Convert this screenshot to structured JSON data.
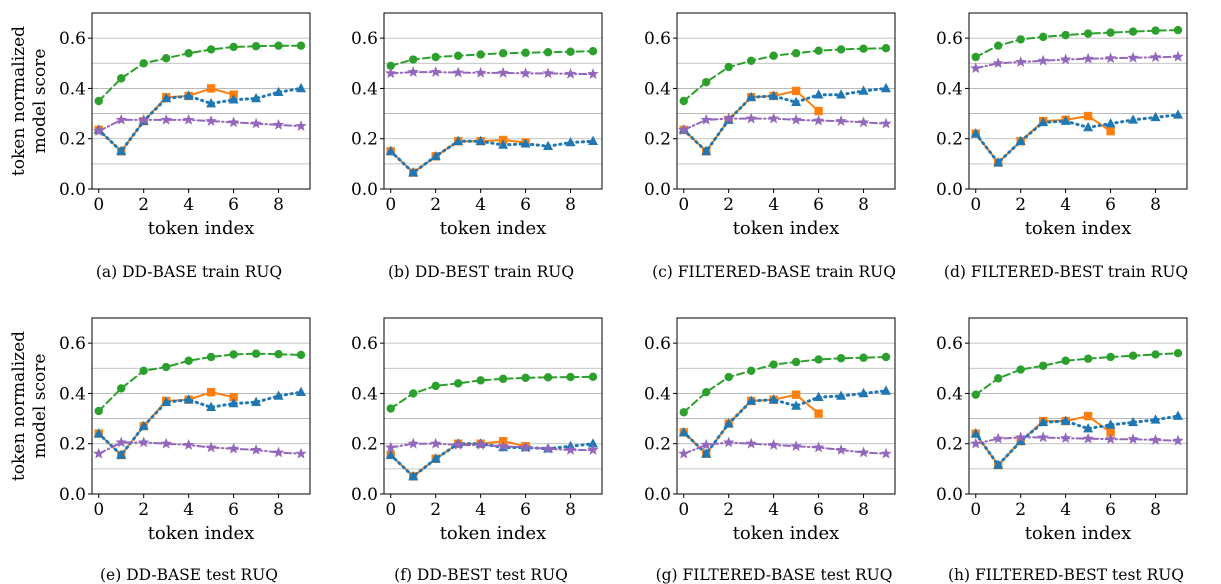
{
  "shared": {
    "ylabel": [
      "token normalized",
      "model score"
    ],
    "xlabel": "token index",
    "xticks": [
      0,
      2,
      4,
      6,
      8
    ],
    "yticks": [
      "0.0",
      "0.2",
      "0.4",
      "0.6"
    ],
    "colors": {
      "green": "#2ca02c",
      "orange": "#ff7f0e",
      "blue": "#1f77b4",
      "purple": "#9467bd"
    }
  },
  "chart_data": [
    {
      "type": "line",
      "caption": "(a) DD-BASE train RUQ",
      "xlim": [
        -0.3,
        9.4
      ],
      "ylim": [
        0,
        0.7
      ],
      "series": [
        {
          "color": "green",
          "marker": "circle",
          "dash": "dashed",
          "x": [
            0,
            1,
            2,
            3,
            4,
            5,
            6,
            7,
            8,
            9
          ],
          "values": [
            0.35,
            0.44,
            0.5,
            0.52,
            0.54,
            0.555,
            0.565,
            0.568,
            0.57,
            0.57
          ]
        },
        {
          "color": "orange",
          "marker": "square",
          "dash": "solid",
          "x": [
            0,
            1,
            2,
            3,
            4,
            5,
            6
          ],
          "values": [
            0.235,
            0.15,
            0.27,
            0.365,
            0.37,
            0.4,
            0.375
          ]
        },
        {
          "color": "blue",
          "marker": "triangle",
          "dash": "dotted",
          "x": [
            0,
            1,
            2,
            3,
            4,
            5,
            6,
            7,
            8,
            9
          ],
          "values": [
            0.235,
            0.15,
            0.27,
            0.36,
            0.37,
            0.34,
            0.355,
            0.36,
            0.385,
            0.4
          ]
        },
        {
          "color": "purple",
          "marker": "star",
          "dash": "dashdot",
          "x": [
            0,
            1,
            2,
            3,
            4,
            5,
            6,
            7,
            8,
            9
          ],
          "values": [
            0.23,
            0.275,
            0.275,
            0.275,
            0.275,
            0.27,
            0.265,
            0.26,
            0.255,
            0.25
          ]
        }
      ]
    },
    {
      "type": "line",
      "caption": "(b) DD-BEST train RUQ",
      "xlim": [
        -0.3,
        9.4
      ],
      "ylim": [
        0,
        0.7
      ],
      "series": [
        {
          "color": "green",
          "marker": "circle",
          "dash": "dashed",
          "x": [
            0,
            1,
            2,
            3,
            4,
            5,
            6,
            7,
            8,
            9
          ],
          "values": [
            0.49,
            0.515,
            0.525,
            0.53,
            0.535,
            0.54,
            0.542,
            0.544,
            0.546,
            0.548
          ]
        },
        {
          "color": "orange",
          "marker": "square",
          "dash": "solid",
          "x": [
            0,
            1,
            2,
            3,
            4,
            5,
            6
          ],
          "values": [
            0.15,
            0.065,
            0.13,
            0.19,
            0.19,
            0.195,
            0.185
          ]
        },
        {
          "color": "blue",
          "marker": "triangle",
          "dash": "dotted",
          "x": [
            0,
            1,
            2,
            3,
            4,
            5,
            6,
            7,
            8,
            9
          ],
          "values": [
            0.15,
            0.065,
            0.13,
            0.19,
            0.19,
            0.175,
            0.18,
            0.17,
            0.185,
            0.19
          ]
        },
        {
          "color": "purple",
          "marker": "star",
          "dash": "dashdot",
          "x": [
            0,
            1,
            2,
            3,
            4,
            5,
            6,
            7,
            8,
            9
          ],
          "values": [
            0.46,
            0.465,
            0.465,
            0.463,
            0.462,
            0.462,
            0.46,
            0.46,
            0.458,
            0.457
          ]
        }
      ]
    },
    {
      "type": "line",
      "caption": "(c) FILTERED-BASE train RUQ",
      "xlim": [
        -0.3,
        9.4
      ],
      "ylim": [
        0,
        0.7
      ],
      "series": [
        {
          "color": "green",
          "marker": "circle",
          "dash": "dashed",
          "x": [
            0,
            1,
            2,
            3,
            4,
            5,
            6,
            7,
            8,
            9
          ],
          "values": [
            0.35,
            0.425,
            0.485,
            0.51,
            0.53,
            0.54,
            0.55,
            0.555,
            0.558,
            0.56
          ]
        },
        {
          "color": "orange",
          "marker": "square",
          "dash": "solid",
          "x": [
            0,
            1,
            2,
            3,
            4,
            5,
            6
          ],
          "values": [
            0.235,
            0.15,
            0.275,
            0.365,
            0.37,
            0.39,
            0.31
          ]
        },
        {
          "color": "blue",
          "marker": "triangle",
          "dash": "dotted",
          "x": [
            0,
            1,
            2,
            3,
            4,
            5,
            6,
            7,
            8,
            9
          ],
          "values": [
            0.235,
            0.15,
            0.275,
            0.365,
            0.37,
            0.345,
            0.375,
            0.375,
            0.39,
            0.4
          ]
        },
        {
          "color": "purple",
          "marker": "star",
          "dash": "dashdot",
          "x": [
            0,
            1,
            2,
            3,
            4,
            5,
            6,
            7,
            8,
            9
          ],
          "values": [
            0.235,
            0.275,
            0.28,
            0.28,
            0.28,
            0.275,
            0.272,
            0.27,
            0.265,
            0.26
          ]
        }
      ]
    },
    {
      "type": "line",
      "caption": "(d) FILTERED-BEST train RUQ",
      "xlim": [
        -0.3,
        9.4
      ],
      "ylim": [
        0,
        0.7
      ],
      "series": [
        {
          "color": "green",
          "marker": "circle",
          "dash": "dashed",
          "x": [
            0,
            1,
            2,
            3,
            4,
            5,
            6,
            7,
            8,
            9
          ],
          "values": [
            0.525,
            0.57,
            0.595,
            0.605,
            0.612,
            0.618,
            0.622,
            0.626,
            0.63,
            0.632
          ]
        },
        {
          "color": "orange",
          "marker": "square",
          "dash": "solid",
          "x": [
            0,
            1,
            2,
            3,
            4,
            5,
            6
          ],
          "values": [
            0.22,
            0.105,
            0.19,
            0.27,
            0.275,
            0.29,
            0.23
          ]
        },
        {
          "color": "blue",
          "marker": "triangle",
          "dash": "dotted",
          "x": [
            0,
            1,
            2,
            3,
            4,
            5,
            6,
            7,
            8,
            9
          ],
          "values": [
            0.22,
            0.105,
            0.19,
            0.265,
            0.27,
            0.245,
            0.26,
            0.275,
            0.285,
            0.295
          ]
        },
        {
          "color": "purple",
          "marker": "star",
          "dash": "dashdot",
          "x": [
            0,
            1,
            2,
            3,
            4,
            5,
            6,
            7,
            8,
            9
          ],
          "values": [
            0.48,
            0.5,
            0.505,
            0.51,
            0.515,
            0.518,
            0.52,
            0.522,
            0.524,
            0.526
          ]
        }
      ]
    },
    {
      "type": "line",
      "caption": "(e) DD-BASE test RUQ",
      "xlim": [
        -0.3,
        9.4
      ],
      "ylim": [
        0,
        0.7
      ],
      "series": [
        {
          "color": "green",
          "marker": "circle",
          "dash": "dashed",
          "x": [
            0,
            1,
            2,
            3,
            4,
            5,
            6,
            7,
            8,
            9
          ],
          "values": [
            0.33,
            0.42,
            0.49,
            0.505,
            0.53,
            0.545,
            0.555,
            0.558,
            0.556,
            0.553
          ]
        },
        {
          "color": "orange",
          "marker": "square",
          "dash": "solid",
          "x": [
            0,
            1,
            2,
            3,
            4,
            5,
            6
          ],
          "values": [
            0.24,
            0.155,
            0.27,
            0.37,
            0.375,
            0.405,
            0.385
          ]
        },
        {
          "color": "blue",
          "marker": "triangle",
          "dash": "dotted",
          "x": [
            0,
            1,
            2,
            3,
            4,
            5,
            6,
            7,
            8,
            9
          ],
          "values": [
            0.24,
            0.155,
            0.27,
            0.365,
            0.375,
            0.345,
            0.36,
            0.365,
            0.39,
            0.405
          ]
        },
        {
          "color": "purple",
          "marker": "star",
          "dash": "dashdot",
          "x": [
            0,
            1,
            2,
            3,
            4,
            5,
            6,
            7,
            8,
            9
          ],
          "values": [
            0.16,
            0.205,
            0.205,
            0.2,
            0.195,
            0.185,
            0.18,
            0.175,
            0.165,
            0.16
          ]
        }
      ]
    },
    {
      "type": "line",
      "caption": "(f) DD-BEST test RUQ",
      "xlim": [
        -0.3,
        9.4
      ],
      "ylim": [
        0,
        0.7
      ],
      "series": [
        {
          "color": "green",
          "marker": "circle",
          "dash": "dashed",
          "x": [
            0,
            1,
            2,
            3,
            4,
            5,
            6,
            7,
            8,
            9
          ],
          "values": [
            0.34,
            0.4,
            0.43,
            0.44,
            0.452,
            0.458,
            0.462,
            0.464,
            0.465,
            0.466
          ]
        },
        {
          "color": "orange",
          "marker": "square",
          "dash": "solid",
          "x": [
            0,
            1,
            2,
            3,
            4,
            5,
            6
          ],
          "values": [
            0.155,
            0.07,
            0.14,
            0.2,
            0.2,
            0.21,
            0.19
          ]
        },
        {
          "color": "blue",
          "marker": "triangle",
          "dash": "dotted",
          "x": [
            0,
            1,
            2,
            3,
            4,
            5,
            6,
            7,
            8,
            9
          ],
          "values": [
            0.155,
            0.07,
            0.14,
            0.2,
            0.2,
            0.185,
            0.185,
            0.18,
            0.19,
            0.2
          ]
        },
        {
          "color": "purple",
          "marker": "star",
          "dash": "dashdot",
          "x": [
            0,
            1,
            2,
            3,
            4,
            5,
            6,
            7,
            8,
            9
          ],
          "values": [
            0.185,
            0.2,
            0.2,
            0.195,
            0.195,
            0.19,
            0.185,
            0.18,
            0.175,
            0.175
          ]
        }
      ]
    },
    {
      "type": "line",
      "caption": "(g) FILTERED-BASE test RUQ",
      "xlim": [
        -0.3,
        9.4
      ],
      "ylim": [
        0,
        0.7
      ],
      "series": [
        {
          "color": "green",
          "marker": "circle",
          "dash": "dashed",
          "x": [
            0,
            1,
            2,
            3,
            4,
            5,
            6,
            7,
            8,
            9
          ],
          "values": [
            0.325,
            0.405,
            0.465,
            0.49,
            0.515,
            0.525,
            0.535,
            0.54,
            0.542,
            0.545
          ]
        },
        {
          "color": "orange",
          "marker": "square",
          "dash": "solid",
          "x": [
            0,
            1,
            2,
            3,
            4,
            5,
            6
          ],
          "values": [
            0.245,
            0.16,
            0.28,
            0.37,
            0.375,
            0.395,
            0.32
          ]
        },
        {
          "color": "blue",
          "marker": "triangle",
          "dash": "dotted",
          "x": [
            0,
            1,
            2,
            3,
            4,
            5,
            6,
            7,
            8,
            9
          ],
          "values": [
            0.245,
            0.16,
            0.28,
            0.37,
            0.375,
            0.35,
            0.385,
            0.39,
            0.4,
            0.41
          ]
        },
        {
          "color": "purple",
          "marker": "star",
          "dash": "dashdot",
          "x": [
            0,
            1,
            2,
            3,
            4,
            5,
            6,
            7,
            8,
            9
          ],
          "values": [
            0.16,
            0.195,
            0.205,
            0.2,
            0.195,
            0.19,
            0.185,
            0.175,
            0.165,
            0.16
          ]
        }
      ]
    },
    {
      "type": "line",
      "caption": "(h) FILTERED-BEST test RUQ",
      "xlim": [
        -0.3,
        9.4
      ],
      "ylim": [
        0,
        0.7
      ],
      "series": [
        {
          "color": "green",
          "marker": "circle",
          "dash": "dashed",
          "x": [
            0,
            1,
            2,
            3,
            4,
            5,
            6,
            7,
            8,
            9
          ],
          "values": [
            0.395,
            0.46,
            0.495,
            0.51,
            0.53,
            0.538,
            0.545,
            0.55,
            0.555,
            0.56
          ]
        },
        {
          "color": "orange",
          "marker": "square",
          "dash": "solid",
          "x": [
            0,
            1,
            2,
            3,
            4,
            5,
            6
          ],
          "values": [
            0.24,
            0.115,
            0.21,
            0.29,
            0.29,
            0.31,
            0.245
          ]
        },
        {
          "color": "blue",
          "marker": "triangle",
          "dash": "dotted",
          "x": [
            0,
            1,
            2,
            3,
            4,
            5,
            6,
            7,
            8,
            9
          ],
          "values": [
            0.24,
            0.115,
            0.21,
            0.285,
            0.29,
            0.26,
            0.275,
            0.285,
            0.295,
            0.31
          ]
        },
        {
          "color": "purple",
          "marker": "star",
          "dash": "dashdot",
          "x": [
            0,
            1,
            2,
            3,
            4,
            5,
            6,
            7,
            8,
            9
          ],
          "values": [
            0.2,
            0.22,
            0.225,
            0.225,
            0.222,
            0.22,
            0.218,
            0.218,
            0.215,
            0.212
          ]
        }
      ]
    }
  ]
}
